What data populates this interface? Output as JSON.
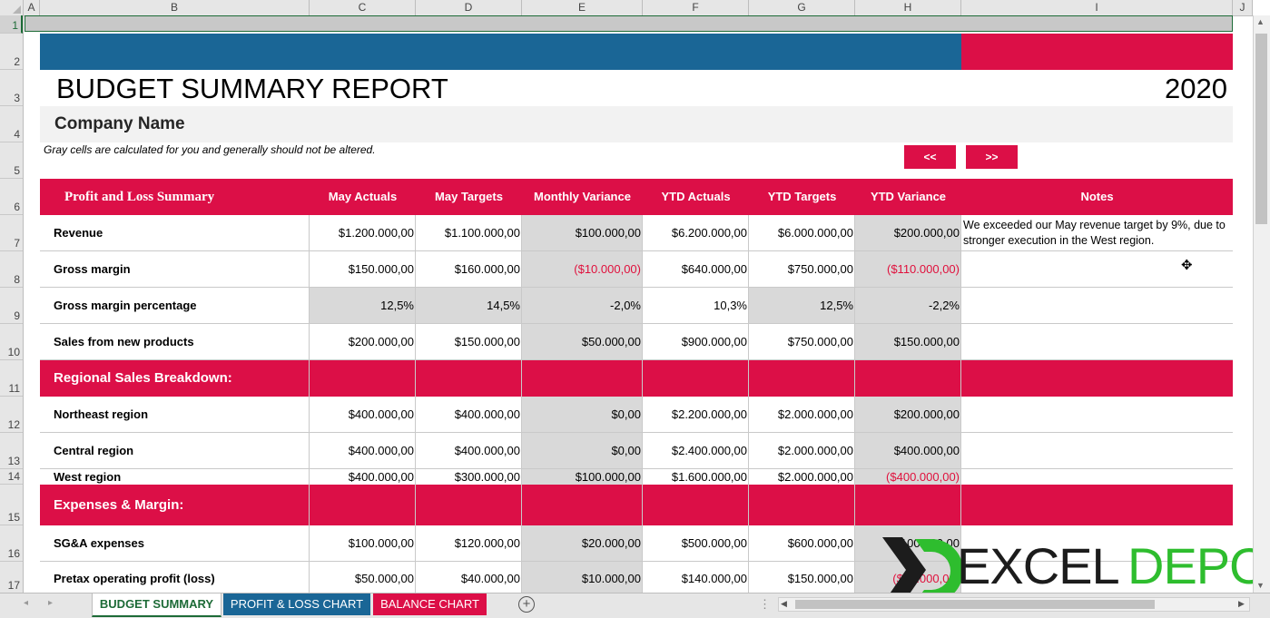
{
  "columns": [
    "A",
    "B",
    "C",
    "D",
    "E",
    "F",
    "G",
    "H",
    "I",
    "J"
  ],
  "rows": [
    "1",
    "2",
    "3",
    "4",
    "5",
    "6",
    "7",
    "8",
    "9",
    "10",
    "11",
    "12",
    "13",
    "14",
    "15",
    "16",
    "17"
  ],
  "report": {
    "title": "BUDGET SUMMARY REPORT",
    "year": "2020",
    "company": "Company Name",
    "note": "Gray cells are calculated for you and generally should not be altered.",
    "prev_label": "<<",
    "next_label": ">>"
  },
  "table": {
    "headers": [
      "Profit and Loss Summary",
      "May Actuals",
      "May Targets",
      "Monthly Variance",
      "YTD Actuals",
      "YTD Targets",
      "YTD Variance",
      "Notes"
    ],
    "pl_rows": [
      {
        "label": "Revenue",
        "c": "$1.200.000,00",
        "d": "$1.100.000,00",
        "e": "$100.000,00",
        "f": "$6.200.000,00",
        "g": "$6.000.000,00",
        "h": "$200.000,00",
        "note": "We exceeded our May revenue target by 9%, due to stronger execution in the West region."
      },
      {
        "label": "Gross margin",
        "c": "$150.000,00",
        "d": "$160.000,00",
        "e": "($10.000,00)",
        "f": "$640.000,00",
        "g": "$750.000,00",
        "h": "($110.000,00)",
        "note": ""
      },
      {
        "label": "Gross margin percentage",
        "c": "12,5%",
        "d": "14,5%",
        "e": "-2,0%",
        "f": "10,3%",
        "g": "12,5%",
        "h": "-2,2%",
        "note": ""
      },
      {
        "label": "Sales from new products",
        "c": "$200.000,00",
        "d": "$150.000,00",
        "e": "$50.000,00",
        "f": "$900.000,00",
        "g": "$750.000,00",
        "h": "$150.000,00",
        "note": ""
      }
    ],
    "regional_header": "Regional Sales Breakdown:",
    "regional_rows": [
      {
        "label": "Northeast region",
        "c": "$400.000,00",
        "d": "$400.000,00",
        "e": "$0,00",
        "f": "$2.200.000,00",
        "g": "$2.000.000,00",
        "h": "$200.000,00"
      },
      {
        "label": "Central region",
        "c": "$400.000,00",
        "d": "$400.000,00",
        "e": "$0,00",
        "f": "$2.400.000,00",
        "g": "$2.000.000,00",
        "h": "$400.000,00"
      },
      {
        "label": "West region",
        "c": "$400.000,00",
        "d": "$300.000,00",
        "e": "$100.000,00",
        "f": "$1.600.000,00",
        "g": "$2.000.000,00",
        "h": "($400.000,00)"
      }
    ],
    "expenses_header": "Expenses & Margin:",
    "expense_rows": [
      {
        "label": "SG&A expenses",
        "c": "$100.000,00",
        "d": "$120.000,00",
        "e": "$20.000,00",
        "f": "$500.000,00",
        "g": "$600.000,00",
        "h": "$100.000,00"
      },
      {
        "label": "Pretax operating profit (loss)",
        "c": "$50.000,00",
        "d": "$40.000,00",
        "e": "$10.000,00",
        "f": "$140.000,00",
        "g": "$150.000,00",
        "h": "($10.000,00)"
      }
    ]
  },
  "watermark": {
    "part1": "EXCEL",
    "part2": "DEPO"
  },
  "sheet_tabs": [
    "BUDGET SUMMARY",
    "PROFIT & LOSS CHART",
    "BALANCE CHART"
  ],
  "colors": {
    "blue": "#1a6696",
    "crimson": "#dc0f47",
    "gray": "#d9d9d9",
    "green_logo": "#2ebd2e"
  }
}
